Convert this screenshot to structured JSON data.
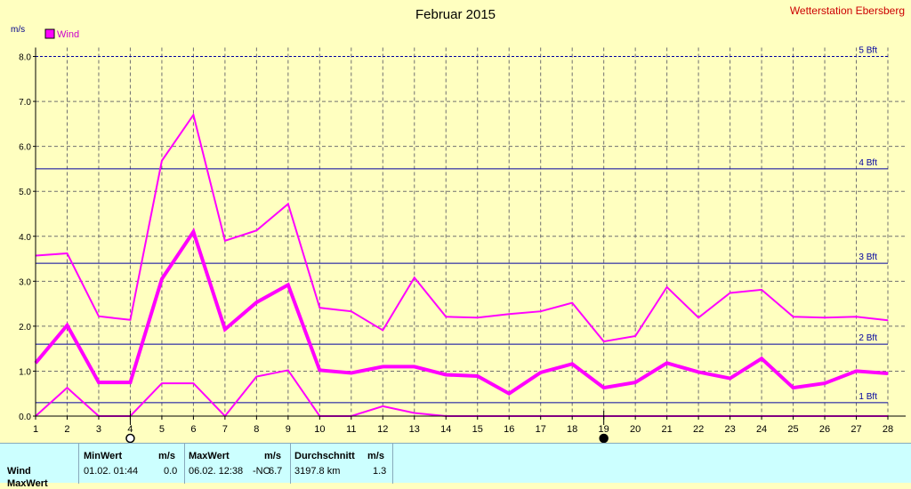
{
  "title": "Februar 2015",
  "station": "Wetterstation Ebersberg",
  "chart_data": {
    "type": "line",
    "title": "Februar 2015",
    "ylabel": "m/s",
    "ylim": [
      0,
      8
    ],
    "y_ticks": [
      "0.0",
      "1.0",
      "2.0",
      "3.0",
      "4.0",
      "5.0",
      "6.0",
      "7.0",
      "8.0"
    ],
    "x": [
      1,
      2,
      3,
      4,
      5,
      6,
      7,
      8,
      9,
      10,
      11,
      12,
      13,
      14,
      15,
      16,
      17,
      18,
      19,
      20,
      21,
      22,
      23,
      24,
      25,
      26,
      27,
      28
    ],
    "legend": "Wind",
    "grid": true,
    "series": [
      {
        "role": "max",
        "color": "#ff00ff",
        "width": 2,
        "values": [
          3.57,
          3.62,
          2.22,
          2.14,
          5.68,
          6.7,
          3.9,
          4.13,
          4.72,
          2.41,
          2.33,
          1.91,
          3.08,
          2.21,
          2.19,
          2.27,
          2.33,
          2.52,
          1.66,
          1.78,
          2.87,
          2.19,
          2.74,
          2.81,
          2.21,
          2.19,
          2.21,
          2.13
        ]
      },
      {
        "role": "avg",
        "color": "#ff00ff",
        "width": 4,
        "values": [
          1.18,
          2.02,
          0.75,
          0.75,
          3.05,
          4.1,
          1.93,
          2.53,
          2.92,
          1.02,
          0.96,
          1.1,
          1.1,
          0.92,
          0.89,
          0.5,
          0.97,
          1.16,
          0.63,
          0.75,
          1.18,
          0.98,
          0.84,
          1.28,
          0.63,
          0.73,
          1.0,
          0.95
        ]
      },
      {
        "role": "min",
        "color": "#ff00ff",
        "width": 2,
        "values": [
          0.0,
          0.63,
          0.0,
          0.0,
          0.73,
          0.73,
          0.0,
          0.88,
          1.02,
          0.0,
          0.0,
          0.22,
          0.07,
          0.0,
          0.0,
          0.0,
          0.0,
          0.0,
          0.0,
          0.0,
          0.0,
          0.0,
          0.0,
          0.0,
          0.0,
          0.0,
          0.0,
          0.0
        ]
      }
    ],
    "reference_lines": [
      {
        "label": "1 Bft",
        "value": 0.3
      },
      {
        "label": "2 Bft",
        "value": 1.6
      },
      {
        "label": "3 Bft",
        "value": 3.4
      },
      {
        "label": "4 Bft",
        "value": 5.5
      },
      {
        "label": "5 Bft",
        "value": 8.0
      }
    ],
    "moon_phases": [
      {
        "day": 4,
        "phase": "full"
      },
      {
        "day": 19,
        "phase": "new"
      }
    ]
  },
  "table": {
    "row_label": "Wind",
    "second_row_label": "MaxWert",
    "min_header": "MinWert",
    "min_unit": "m/s",
    "min_date": "01.02.  01:44",
    "min_value": "0.0",
    "max_header": "MaxWert",
    "max_unit": "m/s",
    "max_date": "06.02.  12:38",
    "max_dir": "NO",
    "max_value": "6.7",
    "avg_header": "Durchschnitt",
    "avg_unit": "m/s",
    "avg_km": "3197.8 km",
    "avg_value": "1.3"
  }
}
